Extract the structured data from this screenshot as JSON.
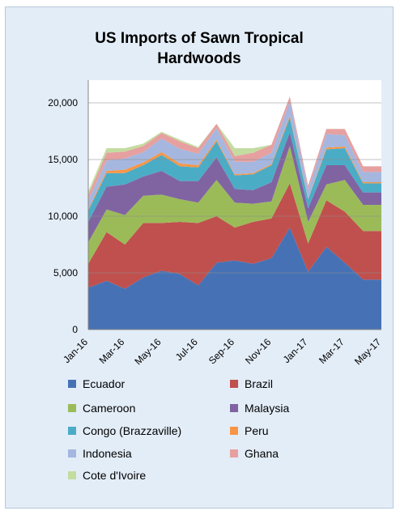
{
  "chart_data": {
    "type": "area",
    "stacked": true,
    "title": "US Imports of Sawn Tropical Hardwoods",
    "title_lines": [
      "US Imports of Sawn Tropical",
      "Hardwoods"
    ],
    "xlabel": "",
    "ylabel": "",
    "ylim": [
      0,
      22000
    ],
    "yticks": [
      0,
      5000,
      10000,
      15000,
      20000
    ],
    "ytick_labels": [
      "0",
      "5,000",
      "10,000",
      "15,000",
      "20,000"
    ],
    "grid": true,
    "legend_position": "bottom",
    "x": [
      "Jan-16",
      "Feb-16",
      "Mar-16",
      "Apr-16",
      "May-16",
      "Jun-16",
      "Jul-16",
      "Aug-16",
      "Sep-16",
      "Oct-16",
      "Nov-16",
      "Dec-16",
      "Jan-17",
      "Feb-17",
      "Mar-17",
      "Apr-17",
      "May-17"
    ],
    "x_tick_labels": [
      "Jan-16",
      "Mar-16",
      "May-16",
      "Jul-16",
      "Sep-16",
      "Nov-16",
      "Jan-17",
      "Mar-17",
      "May-17"
    ],
    "series": [
      {
        "name": "Ecuador",
        "color": "#4672b5",
        "values": [
          3700,
          4300,
          3600,
          4600,
          5200,
          4900,
          3900,
          5900,
          6100,
          5800,
          6300,
          9000,
          5100,
          7300,
          5900,
          4400,
          4400
        ]
      },
      {
        "name": "Brazil",
        "color": "#c0504d",
        "values": [
          2100,
          4300,
          3900,
          4800,
          4200,
          4600,
          5500,
          4100,
          2900,
          3700,
          3500,
          3900,
          2500,
          4100,
          4500,
          4300,
          4300
        ]
      },
      {
        "name": "Cameroon",
        "color": "#9bbb59",
        "values": [
          1900,
          2000,
          2600,
          2400,
          2500,
          2000,
          1800,
          3200,
          2200,
          1600,
          1500,
          3300,
          1900,
          1400,
          2800,
          2300,
          2300
        ]
      },
      {
        "name": "Malaysia",
        "color": "#8064a2",
        "values": [
          1800,
          2000,
          2700,
          1700,
          2100,
          1600,
          1900,
          2000,
          1200,
          1200,
          1700,
          1200,
          1200,
          1700,
          1300,
          1100,
          1100
        ]
      },
      {
        "name": "Congo (Brazzaville)",
        "color": "#4bacc6",
        "values": [
          1000,
          1200,
          1000,
          1000,
          1400,
          1300,
          1200,
          1400,
          1200,
          1400,
          1500,
          1300,
          800,
          1400,
          1500,
          800,
          800
        ]
      },
      {
        "name": "Peru",
        "color": "#f79646",
        "values": [
          100,
          200,
          300,
          250,
          250,
          250,
          200,
          150,
          100,
          100,
          100,
          150,
          50,
          150,
          150,
          100,
          100
        ]
      },
      {
        "name": "Indonesia",
        "color": "#a5b7df",
        "values": [
          800,
          900,
          1000,
          900,
          1200,
          1300,
          1000,
          1000,
          1100,
          1000,
          1000,
          1300,
          800,
          1200,
          1000,
          900,
          900
        ]
      },
      {
        "name": "Ghana",
        "color": "#e6a0a0",
        "values": [
          500,
          700,
          600,
          550,
          500,
          650,
          500,
          400,
          500,
          800,
          700,
          400,
          350,
          450,
          550,
          500,
          500
        ]
      },
      {
        "name": "Cote d'Ivoire",
        "color": "#c3dca0",
        "values": [
          300,
          400,
          300,
          200,
          100,
          150,
          100,
          0,
          700,
          400,
          0,
          0,
          0,
          0,
          0,
          0,
          0
        ]
      }
    ]
  }
}
